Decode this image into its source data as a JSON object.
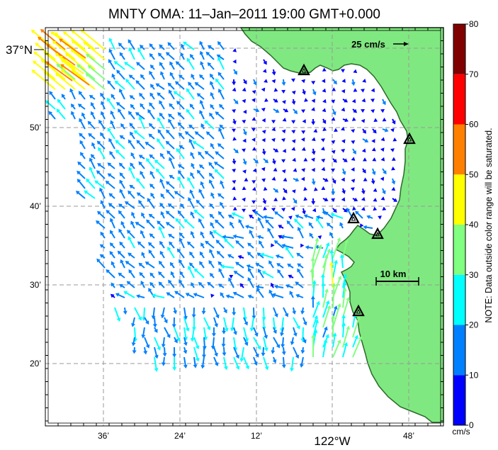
{
  "title": "MNTY OMA: 11–Jan–2011 19:00 GMT+0.000",
  "lat_major_label": "37°N",
  "lon_major_label": "122°W",
  "y_ticks": [
    "50’",
    "40’",
    "30’",
    "20’"
  ],
  "x_ticks": [
    "36’",
    "24’",
    "12’",
    "48’"
  ],
  "reference_vector_label": "25 cm/s",
  "scale_bar_label": "10 km",
  "colorbar": {
    "ticks": [
      "80",
      "70",
      "60",
      "50",
      "40",
      "30",
      "20",
      "10",
      "0"
    ],
    "unit": "cm/s",
    "note": "NOTE: Data outside color range will be saturated.",
    "range": [
      0,
      80
    ],
    "colors": [
      "#0000ff",
      "#0080ff",
      "#00ffff",
      "#80ff80",
      "#ffff00",
      "#ff8000",
      "#ff0000",
      "#800000"
    ]
  },
  "colors": {
    "land": "#80e880",
    "coast": "#2a6b2a",
    "grid": "#9a9a9a"
  },
  "map_axes": {
    "lat_range_deg": [
      36.2,
      37.02
    ],
    "lon_range_deg": [
      -122.7,
      -121.73
    ],
    "x_gridlines_deg": [
      -122.6,
      -122.4,
      -122.2,
      -122.0,
      -121.8
    ],
    "y_gridlines_deg": [
      36.333,
      36.5,
      36.667,
      36.833,
      37.0
    ]
  },
  "stations": [
    "station-1",
    "station-2",
    "station-3",
    "station-4",
    "station-5",
    "station-6"
  ]
}
